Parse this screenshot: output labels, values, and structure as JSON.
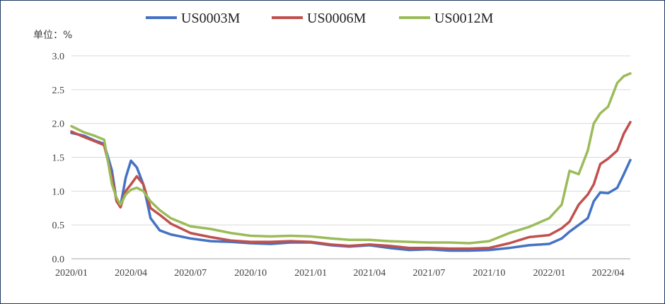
{
  "chart_data": {
    "type": "line",
    "unit_label": "单位：%",
    "x_ticks": [
      "2020/01",
      "2020/04",
      "2020/07",
      "2020/10",
      "2021/01",
      "2021/04",
      "2021/07",
      "2021/10",
      "2022/01",
      "2022/04"
    ],
    "x_range": [
      "2020-01-01",
      "2022-05-05"
    ],
    "y_ticks": [
      "0.0",
      "0.5",
      "1.0",
      "1.5",
      "2.0",
      "2.5",
      "3.0"
    ],
    "ylim": [
      0,
      3
    ],
    "grid": "horizontal",
    "legend": "top-center",
    "series": [
      {
        "name": "US0003M",
        "color": "#4472c4",
        "points": [
          [
            "2020-01-01",
            1.86
          ],
          [
            "2020-01-20",
            1.82
          ],
          [
            "2020-02-05",
            1.75
          ],
          [
            "2020-02-20",
            1.7
          ],
          [
            "2020-03-03",
            1.3
          ],
          [
            "2020-03-10",
            0.85
          ],
          [
            "2020-03-16",
            0.78
          ],
          [
            "2020-03-24",
            1.2
          ],
          [
            "2020-04-01",
            1.45
          ],
          [
            "2020-04-10",
            1.35
          ],
          [
            "2020-04-20",
            1.1
          ],
          [
            "2020-05-01",
            0.6
          ],
          [
            "2020-05-15",
            0.42
          ],
          [
            "2020-06-01",
            0.36
          ],
          [
            "2020-07-01",
            0.3
          ],
          [
            "2020-08-01",
            0.26
          ],
          [
            "2020-09-01",
            0.25
          ],
          [
            "2020-10-01",
            0.23
          ],
          [
            "2020-11-01",
            0.22
          ],
          [
            "2020-12-01",
            0.24
          ],
          [
            "2021-01-01",
            0.24
          ],
          [
            "2021-02-01",
            0.2
          ],
          [
            "2021-03-01",
            0.18
          ],
          [
            "2021-04-01",
            0.2
          ],
          [
            "2021-05-01",
            0.16
          ],
          [
            "2021-06-01",
            0.13
          ],
          [
            "2021-07-01",
            0.14
          ],
          [
            "2021-08-01",
            0.12
          ],
          [
            "2021-09-01",
            0.12
          ],
          [
            "2021-10-01",
            0.13
          ],
          [
            "2021-11-01",
            0.16
          ],
          [
            "2021-12-01",
            0.2
          ],
          [
            "2022-01-01",
            0.22
          ],
          [
            "2022-01-20",
            0.3
          ],
          [
            "2022-02-01",
            0.4
          ],
          [
            "2022-02-15",
            0.5
          ],
          [
            "2022-03-01",
            0.6
          ],
          [
            "2022-03-10",
            0.85
          ],
          [
            "2022-03-20",
            0.98
          ],
          [
            "2022-04-01",
            0.97
          ],
          [
            "2022-04-15",
            1.05
          ],
          [
            "2022-04-25",
            1.25
          ],
          [
            "2022-05-05",
            1.46
          ]
        ]
      },
      {
        "name": "US0006M",
        "color": "#c0504d",
        "points": [
          [
            "2020-01-01",
            1.88
          ],
          [
            "2020-01-20",
            1.8
          ],
          [
            "2020-02-05",
            1.74
          ],
          [
            "2020-02-20",
            1.68
          ],
          [
            "2020-03-03",
            1.2
          ],
          [
            "2020-03-10",
            0.85
          ],
          [
            "2020-03-16",
            0.76
          ],
          [
            "2020-03-24",
            1.0
          ],
          [
            "2020-04-01",
            1.1
          ],
          [
            "2020-04-10",
            1.22
          ],
          [
            "2020-04-20",
            1.1
          ],
          [
            "2020-05-01",
            0.75
          ],
          [
            "2020-05-15",
            0.65
          ],
          [
            "2020-06-01",
            0.52
          ],
          [
            "2020-07-01",
            0.38
          ],
          [
            "2020-08-01",
            0.32
          ],
          [
            "2020-09-01",
            0.27
          ],
          [
            "2020-10-01",
            0.25
          ],
          [
            "2020-11-01",
            0.25
          ],
          [
            "2020-12-01",
            0.26
          ],
          [
            "2021-01-01",
            0.25
          ],
          [
            "2021-02-01",
            0.21
          ],
          [
            "2021-03-01",
            0.19
          ],
          [
            "2021-04-01",
            0.21
          ],
          [
            "2021-05-01",
            0.19
          ],
          [
            "2021-06-01",
            0.16
          ],
          [
            "2021-07-01",
            0.16
          ],
          [
            "2021-08-01",
            0.15
          ],
          [
            "2021-09-01",
            0.15
          ],
          [
            "2021-10-01",
            0.16
          ],
          [
            "2021-11-01",
            0.23
          ],
          [
            "2021-12-01",
            0.32
          ],
          [
            "2022-01-01",
            0.35
          ],
          [
            "2022-01-20",
            0.45
          ],
          [
            "2022-02-01",
            0.55
          ],
          [
            "2022-02-15",
            0.8
          ],
          [
            "2022-03-01",
            0.95
          ],
          [
            "2022-03-10",
            1.1
          ],
          [
            "2022-03-20",
            1.4
          ],
          [
            "2022-04-01",
            1.48
          ],
          [
            "2022-04-15",
            1.6
          ],
          [
            "2022-04-25",
            1.85
          ],
          [
            "2022-05-05",
            2.02
          ]
        ]
      },
      {
        "name": "US0012M",
        "color": "#9bbb59",
        "points": [
          [
            "2020-01-01",
            1.96
          ],
          [
            "2020-01-20",
            1.87
          ],
          [
            "2020-02-05",
            1.82
          ],
          [
            "2020-02-20",
            1.76
          ],
          [
            "2020-03-03",
            1.1
          ],
          [
            "2020-03-10",
            0.9
          ],
          [
            "2020-03-16",
            0.8
          ],
          [
            "2020-03-24",
            0.95
          ],
          [
            "2020-04-01",
            1.02
          ],
          [
            "2020-04-10",
            1.05
          ],
          [
            "2020-04-20",
            1.0
          ],
          [
            "2020-05-01",
            0.85
          ],
          [
            "2020-05-15",
            0.72
          ],
          [
            "2020-06-01",
            0.6
          ],
          [
            "2020-07-01",
            0.48
          ],
          [
            "2020-08-01",
            0.44
          ],
          [
            "2020-09-01",
            0.38
          ],
          [
            "2020-10-01",
            0.34
          ],
          [
            "2020-11-01",
            0.33
          ],
          [
            "2020-12-01",
            0.34
          ],
          [
            "2021-01-01",
            0.33
          ],
          [
            "2021-02-01",
            0.3
          ],
          [
            "2021-03-01",
            0.28
          ],
          [
            "2021-04-01",
            0.28
          ],
          [
            "2021-05-01",
            0.26
          ],
          [
            "2021-06-01",
            0.25
          ],
          [
            "2021-07-01",
            0.24
          ],
          [
            "2021-08-01",
            0.24
          ],
          [
            "2021-09-01",
            0.23
          ],
          [
            "2021-10-01",
            0.26
          ],
          [
            "2021-11-01",
            0.38
          ],
          [
            "2021-12-01",
            0.47
          ],
          [
            "2022-01-01",
            0.6
          ],
          [
            "2022-01-20",
            0.8
          ],
          [
            "2022-02-01",
            1.3
          ],
          [
            "2022-02-15",
            1.25
          ],
          [
            "2022-03-01",
            1.6
          ],
          [
            "2022-03-10",
            2.0
          ],
          [
            "2022-03-20",
            2.15
          ],
          [
            "2022-04-01",
            2.25
          ],
          [
            "2022-04-15",
            2.6
          ],
          [
            "2022-04-25",
            2.7
          ],
          [
            "2022-05-05",
            2.74
          ]
        ]
      }
    ]
  }
}
